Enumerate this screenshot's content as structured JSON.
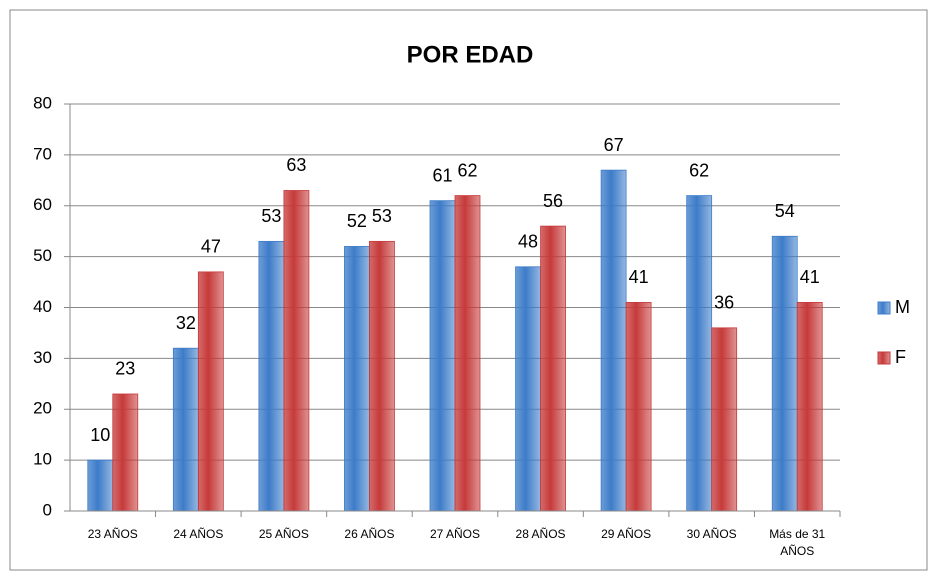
{
  "chart_data": {
    "type": "bar",
    "title": "POR EDAD",
    "categories": [
      "23 AÑOS",
      "24 AÑOS",
      "25 AÑOS",
      "26 AÑOS",
      "27 AÑOS",
      "28 AÑOS",
      "29 AÑOS",
      "30 AÑOS",
      "Más de 31 AÑOS"
    ],
    "series": [
      {
        "name": "M",
        "color": "#3d7cc9",
        "values": [
          10,
          32,
          53,
          52,
          61,
          48,
          67,
          62,
          54
        ]
      },
      {
        "name": "F",
        "color": "#c63a3a",
        "values": [
          23,
          47,
          63,
          53,
          62,
          56,
          41,
          36,
          41
        ]
      }
    ],
    "ylim": [
      0,
      80
    ],
    "yticks": [
      0,
      10,
      20,
      30,
      40,
      50,
      60,
      70,
      80
    ],
    "grid": true,
    "legend": "right"
  }
}
